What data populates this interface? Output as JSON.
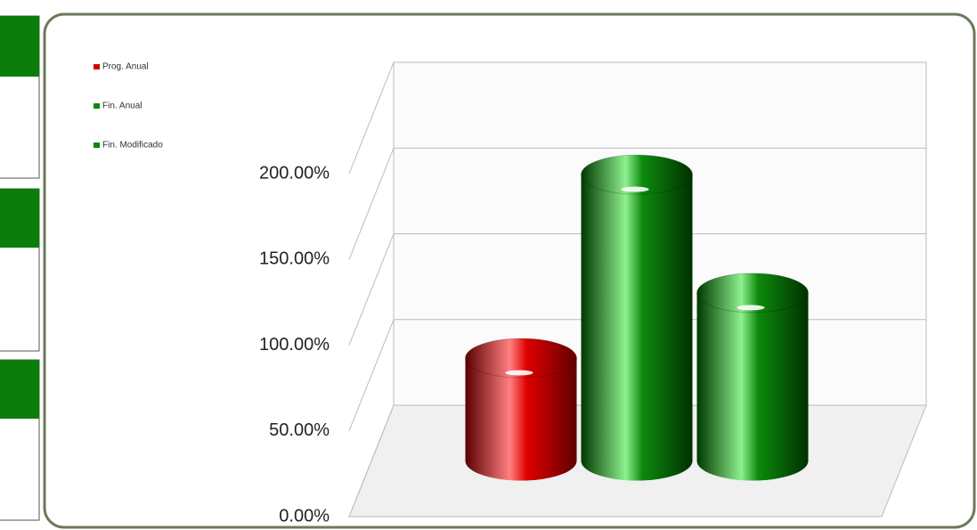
{
  "chart_data": {
    "type": "bar3d",
    "series": [
      {
        "name": "Prog. Anual",
        "color": "#d40000",
        "values": [
          60
        ]
      },
      {
        "name": "Fin. Anual",
        "color": "#0a8a0a",
        "values": [
          167
        ]
      },
      {
        "name": "Fin. Modificado",
        "color": "#0a8a0a",
        "values": [
          98
        ]
      }
    ],
    "ylim": [
      0,
      200
    ],
    "yticks": [
      {
        "value": 0,
        "label": "0.00%"
      },
      {
        "value": 50,
        "label": "50.00%"
      },
      {
        "value": 100,
        "label": "100.00%"
      },
      {
        "value": 150,
        "label": "150.00%"
      },
      {
        "value": 200,
        "label": "200.00%"
      }
    ],
    "grid": true,
    "legend": "top-left"
  }
}
